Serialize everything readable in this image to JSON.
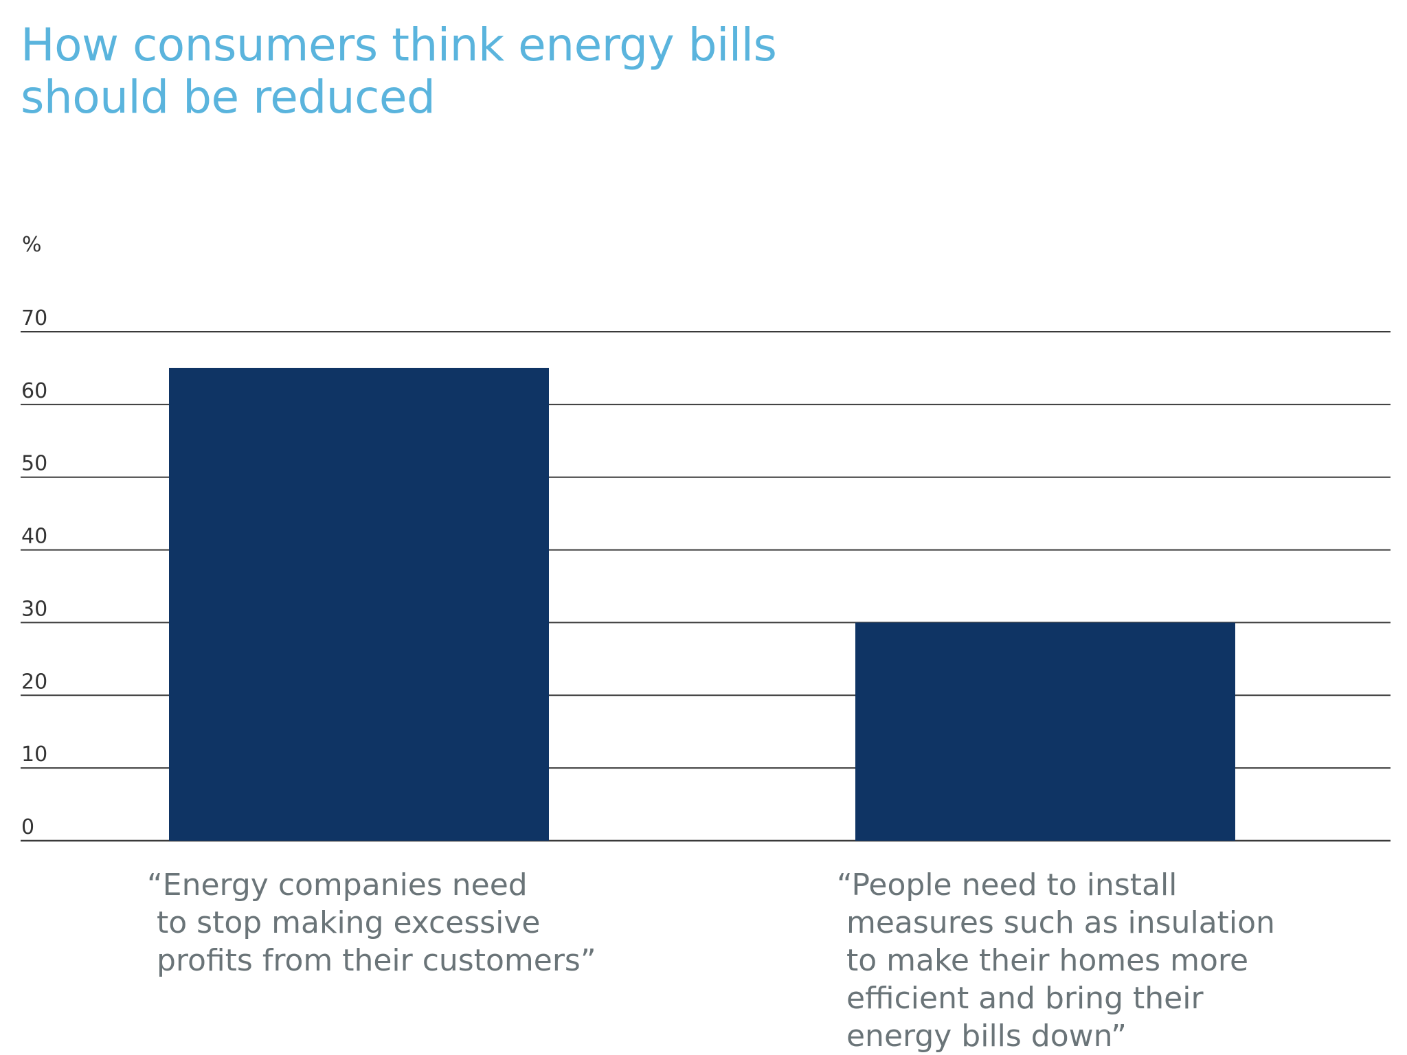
{
  "chart_data": {
    "type": "bar",
    "title_lines": [
      "How consumers think energy bills",
      "should be reduced"
    ],
    "ylabel": "%",
    "yticks": [
      0,
      10,
      20,
      30,
      40,
      50,
      60,
      70
    ],
    "ylim": [
      0,
      70
    ],
    "grid": true,
    "categories": [
      "“Energy companies need\n to stop making excessive\n profits from their customers”",
      "“People need to install\n measures such as insulation\n to make their homes more\n efficient and bring their\n energy bills down”"
    ],
    "values": [
      65,
      30
    ],
    "colors": {
      "bar": "#0f3464",
      "title": "#5ab4dd",
      "grid": "#3a3a3a",
      "category_text": "#6a7478"
    }
  }
}
